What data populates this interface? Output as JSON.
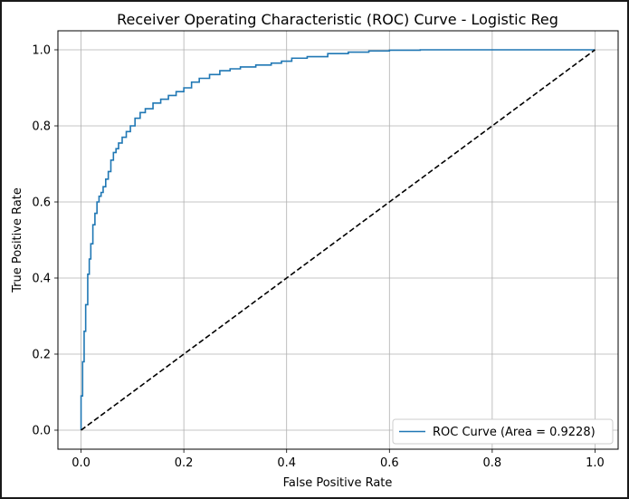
{
  "chart_data": {
    "type": "line",
    "title": "Receiver Operating Characteristic (ROC) Curve - Logistic Reg",
    "xlabel": "False Positive Rate",
    "ylabel": "True Positive Rate",
    "xlim": [
      -0.045,
      1.045
    ],
    "ylim": [
      -0.05,
      1.05
    ],
    "xticks": [
      "0.0",
      "0.2",
      "0.4",
      "0.6",
      "0.8",
      "1.0"
    ],
    "yticks": [
      "0.0",
      "0.2",
      "0.4",
      "0.6",
      "0.8",
      "1.0"
    ],
    "xtick_values": [
      0.0,
      0.2,
      0.4,
      0.6,
      0.8,
      1.0
    ],
    "ytick_values": [
      0.0,
      0.2,
      0.4,
      0.6,
      0.8,
      1.0
    ],
    "grid": true,
    "legend_position": "lower-right",
    "series": [
      {
        "name": "ROC Curve (Area = 0.9228)",
        "color": "#1f77b4",
        "style": "solid",
        "x": [
          0.0,
          0.0,
          0.003,
          0.003,
          0.006,
          0.006,
          0.009,
          0.009,
          0.013,
          0.013,
          0.016,
          0.016,
          0.019,
          0.019,
          0.023,
          0.023,
          0.027,
          0.027,
          0.031,
          0.031,
          0.035,
          0.035,
          0.039,
          0.039,
          0.043,
          0.043,
          0.048,
          0.048,
          0.053,
          0.053,
          0.058,
          0.058,
          0.063,
          0.063,
          0.068,
          0.068,
          0.073,
          0.073,
          0.08,
          0.08,
          0.088,
          0.088,
          0.096,
          0.096,
          0.105,
          0.105,
          0.115,
          0.115,
          0.125,
          0.125,
          0.14,
          0.14,
          0.155,
          0.155,
          0.17,
          0.17,
          0.185,
          0.185,
          0.2,
          0.2,
          0.215,
          0.215,
          0.23,
          0.23,
          0.25,
          0.25,
          0.27,
          0.27,
          0.29,
          0.29,
          0.31,
          0.31,
          0.34,
          0.34,
          0.37,
          0.37,
          0.39,
          0.39,
          0.41,
          0.41,
          0.44,
          0.44,
          0.48,
          0.48,
          0.52,
          0.52,
          0.56,
          0.56,
          0.6,
          0.6,
          0.66,
          0.66,
          0.7,
          0.7,
          0.8,
          0.9,
          1.0
        ],
        "y": [
          0.0,
          0.09,
          0.09,
          0.18,
          0.18,
          0.26,
          0.26,
          0.33,
          0.33,
          0.41,
          0.41,
          0.45,
          0.45,
          0.49,
          0.49,
          0.54,
          0.54,
          0.57,
          0.57,
          0.6,
          0.6,
          0.615,
          0.615,
          0.625,
          0.625,
          0.64,
          0.64,
          0.66,
          0.66,
          0.68,
          0.68,
          0.71,
          0.71,
          0.73,
          0.73,
          0.74,
          0.74,
          0.755,
          0.755,
          0.77,
          0.77,
          0.785,
          0.785,
          0.8,
          0.8,
          0.82,
          0.82,
          0.835,
          0.835,
          0.845,
          0.845,
          0.86,
          0.86,
          0.87,
          0.87,
          0.88,
          0.88,
          0.89,
          0.89,
          0.9,
          0.9,
          0.915,
          0.915,
          0.925,
          0.925,
          0.935,
          0.935,
          0.945,
          0.945,
          0.95,
          0.95,
          0.955,
          0.955,
          0.96,
          0.96,
          0.965,
          0.965,
          0.97,
          0.97,
          0.978,
          0.978,
          0.982,
          0.982,
          0.99,
          0.99,
          0.994,
          0.994,
          0.997,
          0.997,
          0.999,
          0.999,
          1.0,
          1.0,
          1.0,
          1.0,
          1.0,
          1.0
        ]
      },
      {
        "name": "",
        "color": "#000000",
        "style": "dashed",
        "x": [
          0.0,
          1.0
        ],
        "y": [
          0.0,
          1.0
        ]
      }
    ]
  }
}
